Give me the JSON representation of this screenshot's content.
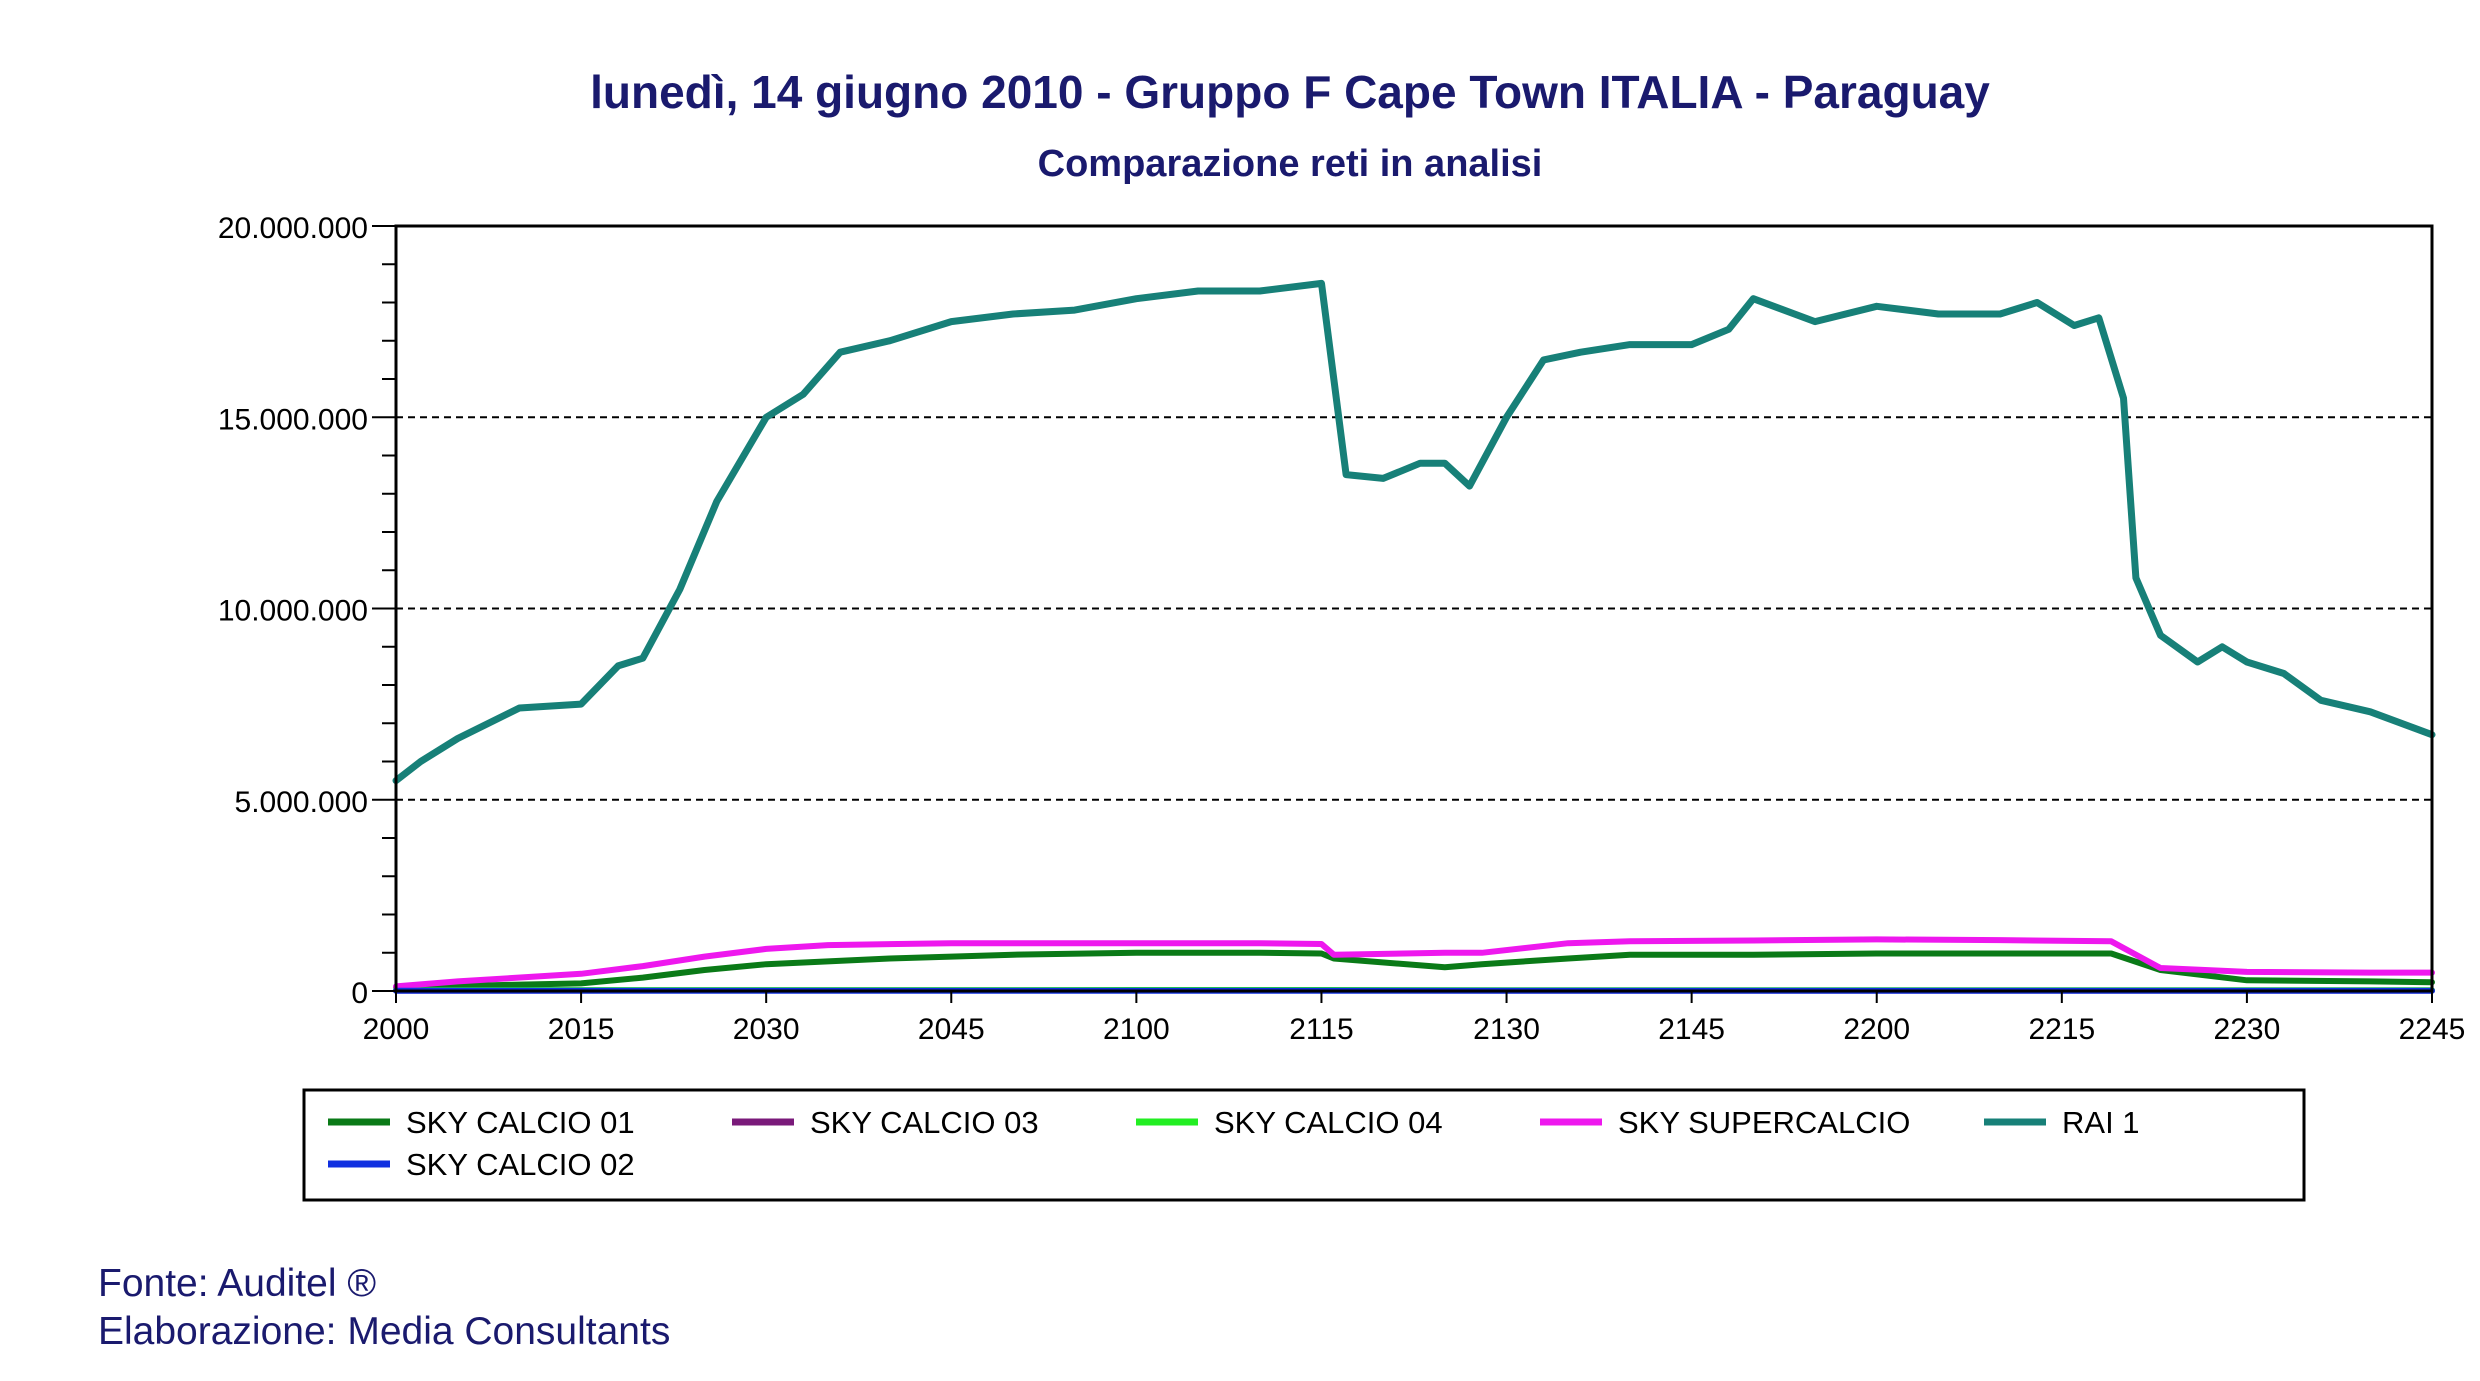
{
  "colors": {
    "title": "#1a1a6e",
    "footer": "#1a1a6e",
    "grid": "#000000",
    "axis": "#000000"
  },
  "chart_data": {
    "type": "line",
    "title": "lunedì, 14 giugno 2010 - Gruppo F Cape Town  ITALIA - Paraguay",
    "subtitle": "Comparazione reti in analisi",
    "xlabel": "",
    "ylabel": "",
    "xlim": [
      "2000",
      "2245"
    ],
    "ylim": [
      0,
      20000000
    ],
    "x_ticks": [
      "2000",
      "2015",
      "2030",
      "2045",
      "2100",
      "2115",
      "2130",
      "2145",
      "2200",
      "2215",
      "2230",
      "2245"
    ],
    "y_ticks": [
      0,
      5000000,
      10000000,
      15000000,
      20000000
    ],
    "y_tick_labels": [
      "0",
      "5.000.000",
      "10.000.000",
      "15.000.000",
      "20.000.000"
    ],
    "grid": "horizontal dashed",
    "legend_placement": "bottom",
    "series": [
      {
        "name": "SKY CALCIO 01",
        "color": "#0a7a17",
        "x": [
          "2000",
          "2015",
          "2020",
          "2025",
          "2030",
          "2040",
          "2050",
          "2100",
          "2110",
          "2115",
          "2116",
          "2125",
          "2128",
          "2135",
          "2140",
          "2150",
          "2200",
          "2210",
          "2219",
          "2223",
          "2230",
          "2240",
          "2245"
        ],
        "values": [
          100000,
          200000,
          350000,
          550000,
          700000,
          850000,
          950000,
          1000000,
          1000000,
          980000,
          850000,
          620000,
          700000,
          850000,
          950000,
          950000,
          980000,
          980000,
          980000,
          550000,
          280000,
          250000,
          230000
        ]
      },
      {
        "name": "SKY CALCIO 03",
        "color": "#7a1a7a",
        "x": [
          "2000",
          "2115",
          "2130",
          "2245"
        ],
        "values": [
          10000,
          15000,
          10000,
          10000
        ]
      },
      {
        "name": "SKY CALCIO 04",
        "color": "#22ee22",
        "x": [
          "2000",
          "2115",
          "2130",
          "2245"
        ],
        "values": [
          20000,
          25000,
          20000,
          20000
        ]
      },
      {
        "name": "SKY SUPERCALCIO",
        "color": "#ee18ee",
        "x": [
          "2000",
          "2005",
          "2015",
          "2020",
          "2025",
          "2030",
          "2035",
          "2045",
          "2100",
          "2110",
          "2115",
          "2116",
          "2125",
          "2128",
          "2135",
          "2140",
          "2150",
          "2200",
          "2210",
          "2219",
          "2223",
          "2230",
          "2240",
          "2245"
        ],
        "values": [
          120000,
          250000,
          450000,
          650000,
          900000,
          1100000,
          1200000,
          1250000,
          1250000,
          1250000,
          1230000,
          950000,
          1000000,
          1000000,
          1250000,
          1300000,
          1320000,
          1350000,
          1330000,
          1300000,
          600000,
          500000,
          480000,
          480000
        ]
      },
      {
        "name": "RAI 1",
        "color": "#178078",
        "x": [
          "2000",
          "2002",
          "2005",
          "2010",
          "2015",
          "2018",
          "2020",
          "2023",
          "2026",
          "2030",
          "2033",
          "2036",
          "2040",
          "2045",
          "2050",
          "2055",
          "2100",
          "2105",
          "2110",
          "2115",
          "2117",
          "2120",
          "2123",
          "2125",
          "2127",
          "2130",
          "2133",
          "2136",
          "2140",
          "2145",
          "2148",
          "2150",
          "2155",
          "2200",
          "2205",
          "2210",
          "2213",
          "2216",
          "2218",
          "2220",
          "2221",
          "2223",
          "2226",
          "2228",
          "2230",
          "2233",
          "2236",
          "2240",
          "2245"
        ],
        "values": [
          5500000,
          6000000,
          6600000,
          7400000,
          7500000,
          8500000,
          8700000,
          10500000,
          12800000,
          15000000,
          15600000,
          16700000,
          17000000,
          17500000,
          17700000,
          17800000,
          18100000,
          18300000,
          18300000,
          18500000,
          13500000,
          13400000,
          13800000,
          13800000,
          13200000,
          15000000,
          16500000,
          16700000,
          16900000,
          16900000,
          17300000,
          18100000,
          17500000,
          17900000,
          17700000,
          17700000,
          18000000,
          17400000,
          17600000,
          15500000,
          10800000,
          9300000,
          8600000,
          9000000,
          8600000,
          8300000,
          7600000,
          7300000,
          6700000
        ]
      },
      {
        "name": "SKY CALCIO 02",
        "color": "#1030e0",
        "x": [
          "2000",
          "2115",
          "2245"
        ],
        "values": [
          5000,
          5000,
          5000
        ]
      }
    ]
  },
  "legend": [
    {
      "name": "SKY CALCIO 01",
      "color": "#0a7a17"
    },
    {
      "name": "SKY CALCIO 03",
      "color": "#7a1a7a"
    },
    {
      "name": "SKY CALCIO 04",
      "color": "#22ee22"
    },
    {
      "name": "SKY SUPERCALCIO",
      "color": "#ee18ee"
    },
    {
      "name": "RAI 1",
      "color": "#178078"
    },
    {
      "name": "SKY CALCIO 02",
      "color": "#1030e0"
    }
  ],
  "footer": {
    "source": "Fonte: Auditel ®",
    "processing": "Elaborazione: Media Consultants"
  }
}
